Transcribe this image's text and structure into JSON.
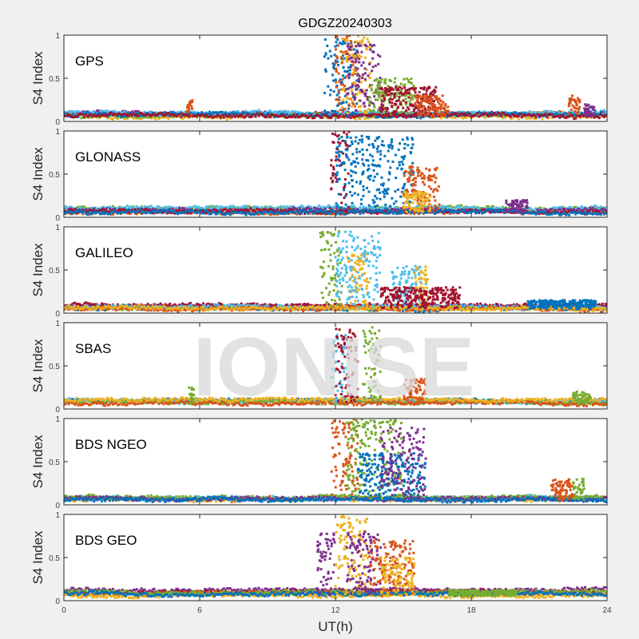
{
  "chart_data": {
    "type": "scatter",
    "title": "GDGZ20240303",
    "xlabel": "UT(h)",
    "ylabel": "S4 Index",
    "xlim": [
      0,
      24
    ],
    "ylim": [
      0,
      1
    ],
    "xticks": [
      "0",
      "6",
      "12",
      "18",
      "24"
    ],
    "yticks": [
      "0",
      "0.5",
      "1"
    ],
    "watermark": "IONISE",
    "colors": {
      "blue": "#0072BD",
      "orange": "#D95319",
      "yellow": "#EDB120",
      "purple": "#7E2F8E",
      "green": "#77AC30",
      "cyan": "#4DBEEE",
      "red": "#A2142F"
    },
    "panels": [
      {
        "label": "GPS",
        "baseline": [
          [
            "orange",
            0.08
          ],
          [
            "yellow",
            0.06
          ],
          [
            "purple",
            0.09
          ],
          [
            "green",
            0.07
          ],
          [
            "cyan",
            0.1
          ],
          [
            "blue",
            0.08
          ],
          [
            "red",
            0.07
          ]
        ],
        "bursts": [
          [
            "blue",
            11.5,
            13,
            0.95
          ],
          [
            "orange",
            12,
            13,
            1
          ],
          [
            "yellow",
            12.3,
            13.6,
            1
          ],
          [
            "purple",
            12.5,
            14,
            0.9
          ],
          [
            "green",
            13.5,
            15.5,
            0.5
          ],
          [
            "red",
            14,
            16.5,
            0.4
          ],
          [
            "orange",
            15.5,
            17,
            0.3
          ],
          [
            "orange",
            5.4,
            5.7,
            0.25
          ],
          [
            "orange",
            22.3,
            22.8,
            0.3
          ],
          [
            "purple",
            23,
            23.5,
            0.2
          ]
        ]
      },
      {
        "label": "GLONASS",
        "baseline": [
          [
            "orange",
            0.06
          ],
          [
            "green",
            0.1
          ],
          [
            "cyan",
            0.11
          ],
          [
            "purple",
            0.08
          ],
          [
            "red",
            0.07
          ],
          [
            "blue",
            0.06
          ]
        ],
        "bursts": [
          [
            "red",
            11.8,
            12.6,
            1
          ],
          [
            "blue",
            12,
            15.5,
            0.95
          ],
          [
            "orange",
            15,
            16.6,
            0.6
          ],
          [
            "yellow",
            15,
            16.2,
            0.3
          ],
          [
            "purple",
            19.5,
            20.5,
            0.2
          ]
        ]
      },
      {
        "label": "GALILEO",
        "baseline": [
          [
            "green",
            0.06
          ],
          [
            "purple",
            0.07
          ],
          [
            "red",
            0.09
          ],
          [
            "blue",
            0.06
          ],
          [
            "cyan",
            0.07
          ],
          [
            "orange",
            0.05
          ],
          [
            "yellow",
            0.06
          ]
        ],
        "bursts": [
          [
            "green",
            11.3,
            12.3,
            0.95
          ],
          [
            "yellow",
            12.5,
            13.5,
            0.7
          ],
          [
            "cyan",
            12,
            14,
            0.95
          ],
          [
            "cyan",
            14.5,
            16,
            0.55
          ],
          [
            "yellow",
            15.5,
            16.1,
            0.55
          ],
          [
            "red",
            14,
            17.5,
            0.3
          ],
          [
            "blue",
            20.5,
            23.5,
            0.15
          ]
        ]
      },
      {
        "label": "SBAS",
        "baseline": [
          [
            "blue",
            0.1
          ],
          [
            "cyan",
            0.09
          ],
          [
            "green",
            0.08
          ],
          [
            "orange",
            0.07
          ],
          [
            "yellow",
            0.11
          ]
        ],
        "bursts": [
          [
            "cyan",
            11.8,
            12.5,
            0.9
          ],
          [
            "red",
            12,
            13,
            0.95
          ],
          [
            "green",
            13.2,
            14,
            0.95
          ],
          [
            "orange",
            15,
            16,
            0.35
          ],
          [
            "green",
            5.5,
            5.8,
            0.25
          ],
          [
            "green",
            22.5,
            23.3,
            0.2
          ]
        ]
      },
      {
        "label": "BDS NGEO",
        "baseline": [
          [
            "orange",
            0.07
          ],
          [
            "yellow",
            0.06
          ],
          [
            "cyan",
            0.08
          ],
          [
            "green",
            0.09
          ],
          [
            "purple",
            0.07
          ],
          [
            "blue",
            0.06
          ]
        ],
        "bursts": [
          [
            "orange",
            11.8,
            13,
            1
          ],
          [
            "green",
            12.5,
            15,
            1
          ],
          [
            "blue",
            13,
            16,
            0.6
          ],
          [
            "purple",
            14,
            16,
            0.9
          ],
          [
            "orange",
            21.5,
            22.5,
            0.3
          ],
          [
            "green",
            22.5,
            23,
            0.3
          ]
        ]
      },
      {
        "label": "BDS GEO",
        "baseline": [
          [
            "purple",
            0.12
          ],
          [
            "red",
            0.1
          ],
          [
            "orange",
            0.09
          ],
          [
            "yellow",
            0.06
          ],
          [
            "green",
            0.1
          ],
          [
            "blue",
            0.08
          ]
        ],
        "bursts": [
          [
            "purple",
            11.2,
            12,
            0.8
          ],
          [
            "yellow",
            12,
            13.5,
            1
          ],
          [
            "purple",
            12.5,
            14,
            0.8
          ],
          [
            "orange",
            13.5,
            15.5,
            0.7
          ],
          [
            "yellow",
            14,
            15.5,
            0.5
          ],
          [
            "green",
            17,
            20,
            0.12
          ]
        ]
      }
    ]
  }
}
